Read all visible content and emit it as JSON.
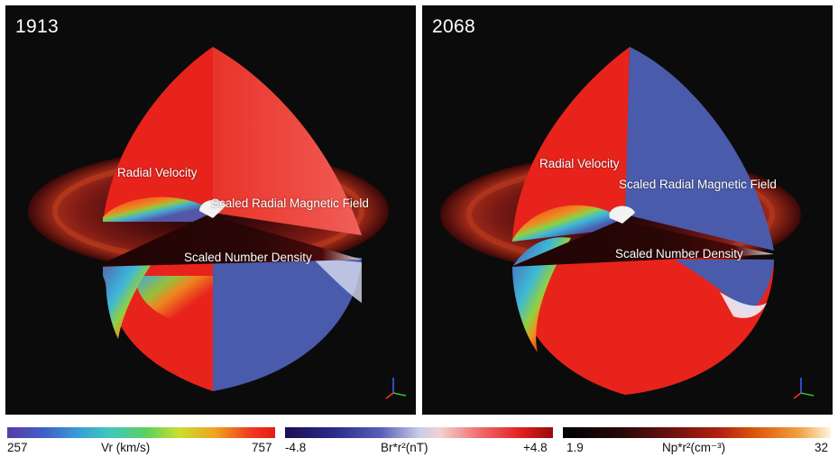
{
  "panels": {
    "left": {
      "year": "1913",
      "labels": {
        "velocity": "Radial Velocity",
        "magnetic": "Scaled Radial Magnetic Field",
        "density": "Scaled Number Density"
      }
    },
    "right": {
      "year": "2068",
      "labels": {
        "velocity": "Radial Velocity",
        "magnetic": "Scaled Radial Magnetic Field",
        "density": "Scaled Number Density"
      }
    }
  },
  "colorbars": {
    "vr": {
      "min": "257",
      "label": "Vr (km/s)",
      "max": "757"
    },
    "br": {
      "min": "-4.8",
      "label": "Br*r²(nT)",
      "max": "+4.8"
    },
    "np": {
      "min": "1.9",
      "label": "Np*r²(cm⁻³)",
      "max": "32"
    }
  },
  "colors": {
    "red": "#e8231c",
    "blue": "#4b5bab",
    "background": "#0b0b0b"
  },
  "icons": [
    "xyz-axes-icon"
  ]
}
